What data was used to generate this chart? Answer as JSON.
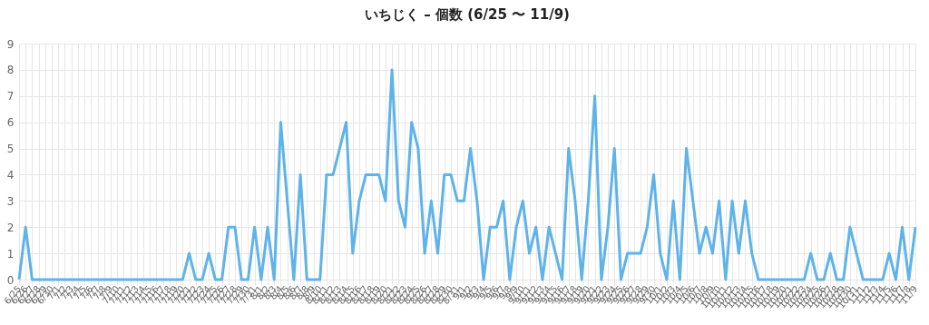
{
  "chart_data": {
    "type": "line",
    "title": "いちじく – 個数 (6/25 〜 11/9)",
    "categories": [
      "6/25",
      "6/26",
      "6/27",
      "6/28",
      "6/29",
      "6/30",
      "7/1",
      "7/2",
      "7/3",
      "7/4",
      "7/5",
      "7/6",
      "7/7",
      "7/8",
      "7/9",
      "7/10",
      "7/11",
      "7/12",
      "7/13",
      "7/14",
      "7/15",
      "7/16",
      "7/17",
      "7/18",
      "7/19",
      "7/20",
      "7/21",
      "7/22",
      "7/23",
      "7/24",
      "7/25",
      "7/26",
      "7/27",
      "7/28",
      "7/29",
      "7/30",
      "7/31",
      "8/1",
      "8/2",
      "8/3",
      "8/4",
      "8/5",
      "8/6",
      "8/7",
      "8/8",
      "8/9",
      "8/10",
      "8/11",
      "8/12",
      "8/13",
      "8/14",
      "8/15",
      "8/16",
      "8/17",
      "8/18",
      "8/19",
      "8/20",
      "8/21",
      "8/22",
      "8/23",
      "8/24",
      "8/25",
      "8/26",
      "8/27",
      "8/28",
      "8/29",
      "8/30",
      "8/31",
      "9/1",
      "9/2",
      "9/3",
      "9/4",
      "9/5",
      "9/6",
      "9/7",
      "9/8",
      "9/9",
      "9/10",
      "9/11",
      "9/12",
      "9/13",
      "9/14",
      "9/15",
      "9/16",
      "9/17",
      "9/18",
      "9/19",
      "9/20",
      "9/21",
      "9/22",
      "9/23",
      "9/24",
      "9/25",
      "9/26",
      "9/27",
      "9/28",
      "9/29",
      "9/30",
      "10/1",
      "10/2",
      "10/3",
      "10/4",
      "10/5",
      "10/6",
      "10/7",
      "10/8",
      "10/9",
      "10/10",
      "10/11",
      "10/12",
      "10/13",
      "10/14",
      "10/15",
      "10/16",
      "10/17",
      "10/18",
      "10/19",
      "10/20",
      "10/21",
      "10/22",
      "10/23",
      "10/24",
      "10/25",
      "10/26",
      "10/27",
      "10/28",
      "10/29",
      "10/30",
      "10/31",
      "11/1",
      "11/2",
      "11/3",
      "11/4",
      "11/5",
      "11/6",
      "11/7",
      "11/8",
      "11/9"
    ],
    "series": [
      {
        "color": "#5db3ea",
        "values": [
          0,
          2,
          0,
          0,
          0,
          0,
          0,
          0,
          0,
          0,
          0,
          0,
          0,
          0,
          0,
          0,
          0,
          0,
          0,
          0,
          0,
          0,
          0,
          0,
          0,
          0,
          1,
          0,
          0,
          1,
          0,
          0,
          2,
          2,
          0,
          0,
          2,
          0,
          2,
          0,
          6,
          3,
          0,
          4,
          0,
          0,
          0,
          4,
          4,
          5,
          6,
          1,
          3,
          4,
          4,
          4,
          3,
          8,
          3,
          2,
          6,
          5,
          1,
          3,
          1,
          4,
          4,
          3,
          3,
          5,
          3,
          0,
          2,
          2,
          3,
          0,
          2,
          3,
          1,
          2,
          0,
          2,
          1,
          0,
          5,
          3,
          0,
          3,
          7,
          0,
          2,
          5,
          0,
          1,
          1,
          1,
          2,
          4,
          1,
          0,
          3,
          0,
          5,
          3,
          1,
          2,
          1,
          3,
          0,
          3,
          1,
          3,
          1,
          0,
          0,
          0,
          0,
          0,
          0,
          0,
          0,
          1,
          0,
          0,
          1,
          0,
          0,
          2,
          1,
          0,
          0,
          0,
          0,
          1,
          0,
          2,
          0,
          2
        ]
      }
    ],
    "ylim": [
      0,
      9
    ],
    "yticks": [
      0,
      1,
      2,
      3,
      4,
      5,
      6,
      7,
      8,
      9
    ],
    "grid": true
  }
}
